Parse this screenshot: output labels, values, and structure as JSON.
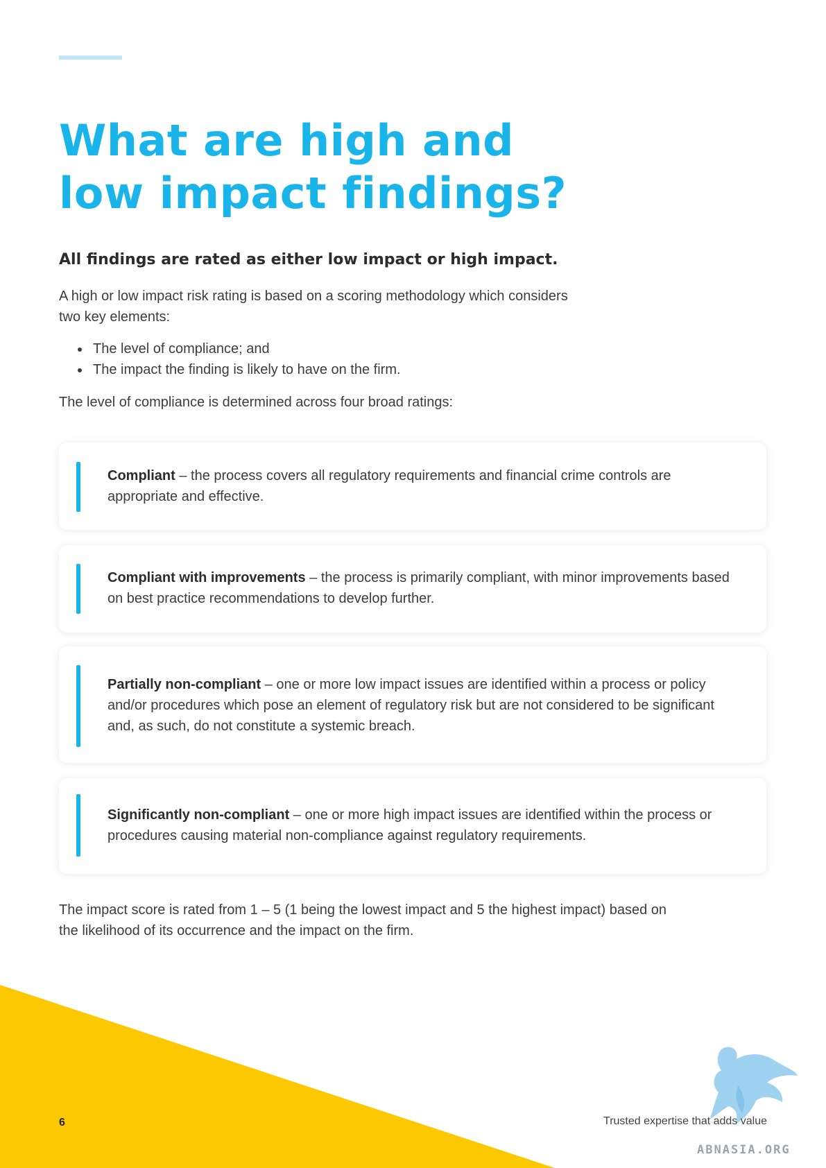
{
  "title": {
    "line1": "What are high and",
    "line2": "low impact findings?"
  },
  "lead": "All findings are rated as either low impact or high impact.",
  "intro": "A high or low impact risk rating is based on a scoring methodology which considers two key elements:",
  "bullets": [
    "The level of compliance; and",
    "The impact the finding is likely to have on the firm."
  ],
  "ratings_intro": "The level of compliance is determined across four broad ratings:",
  "ratings": [
    {
      "term": "Compliant",
      "desc": " – the process covers all regulatory requirements and financial crime controls are appropriate and effective."
    },
    {
      "term": "Compliant with improvements",
      "desc": " – the process is primarily compliant, with minor improvements based on best practice recommendations to develop further."
    },
    {
      "term": "Partially non-compliant",
      "desc": " – one or more low impact issues are identified within a process or policy and/or procedures which pose an element of regulatory risk but are not considered to be significant and, as such, do not constitute a systemic breach."
    },
    {
      "term": "Significantly non-compliant",
      "desc": " – one or more high impact issues are identified within the process or procedures causing material non-compliance against regulatory requirements."
    }
  ],
  "impact_text": "The impact score is rated from 1 – 5 (1 being the lowest impact and 5 the highest impact) based on the likelihood of its occurrence and the impact on the firm.",
  "footer": {
    "page_number": "6",
    "tagline": "Trusted expertise that adds value",
    "watermark": "ABNASIA.ORG"
  },
  "colors": {
    "accent": "#19b5ea",
    "yellow": "#fcc800"
  },
  "icons": {
    "watermark_graphic": "griffin-logo-icon"
  }
}
